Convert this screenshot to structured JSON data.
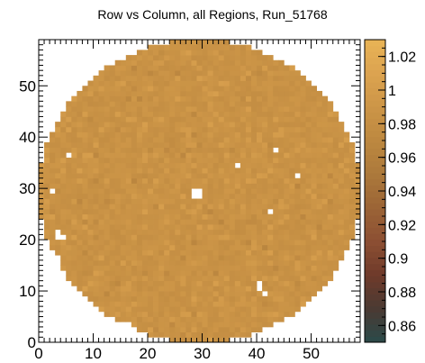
{
  "chart_data": {
    "type": "heatmap",
    "title": "Row vs Column, all Regions, Run_51768",
    "xlabel": "",
    "ylabel": "",
    "xlim": [
      0,
      59
    ],
    "ylim": [
      0,
      59
    ],
    "zlim": [
      0.85,
      1.03
    ],
    "x_ticks": [
      0,
      10,
      20,
      30,
      40,
      50
    ],
    "y_ticks": [
      0,
      10,
      20,
      30,
      40,
      50
    ],
    "z_ticks": [
      "0.86",
      "0.88",
      "0.9",
      "0.92",
      "0.94",
      "0.96",
      "0.98",
      "1",
      "1.02"
    ],
    "grid": false,
    "legend": "colorbar right",
    "shape": "circular active region",
    "circle_center": [
      29.5,
      29.5
    ],
    "circle_radius": 29.5,
    "typical_value": 0.985,
    "colormap": [
      "#2a4a4a",
      "#4a3a33",
      "#6e3a2a",
      "#8c4f33",
      "#9b6436",
      "#ac793b",
      "#bd8840",
      "#cc9547",
      "#dca350",
      "#e8b455"
    ],
    "dead_cells": [
      [
        28,
        28
      ],
      [
        29,
        28
      ],
      [
        28,
        29
      ],
      [
        29,
        29
      ],
      [
        3,
        20
      ],
      [
        4,
        20
      ],
      [
        3,
        21
      ],
      [
        3,
        16
      ],
      [
        41,
        9
      ],
      [
        5,
        36
      ],
      [
        2,
        29
      ],
      [
        16,
        3
      ],
      [
        40,
        11
      ],
      [
        40,
        10
      ],
      [
        42,
        25
      ],
      [
        43,
        37
      ],
      [
        36,
        34
      ],
      [
        47,
        32
      ],
      [
        48,
        56
      ]
    ]
  }
}
